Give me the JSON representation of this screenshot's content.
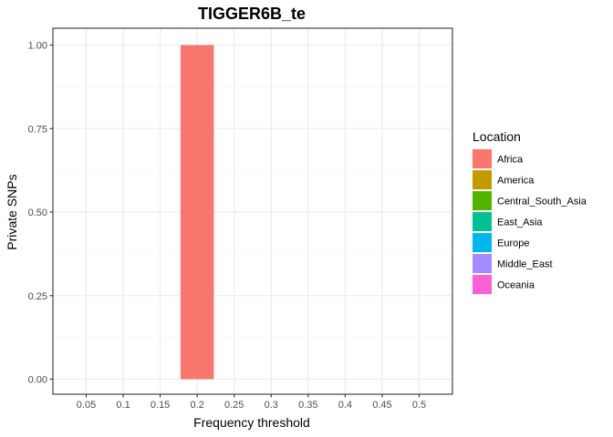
{
  "chart_data": {
    "type": "bar",
    "title": "TIGGER6B_te",
    "xlabel": "Frequency threshold",
    "ylabel": "Private SNPs",
    "categories": [
      "0.05",
      "0.1",
      "0.15",
      "0.2",
      "0.25",
      "0.3",
      "0.35",
      "0.4",
      "0.45",
      "0.5"
    ],
    "x_ticks": [
      "0.05",
      "0.1",
      "0.15",
      "0.2",
      "0.25",
      "0.3",
      "0.35",
      "0.4",
      "0.45",
      "0.5"
    ],
    "y_ticks": [
      "0.00",
      "0.25",
      "0.50",
      "0.75",
      "1.00"
    ],
    "ylim": [
      0,
      1
    ],
    "grid": true,
    "legend_position": "right",
    "legend_title": "Location",
    "series": [
      {
        "name": "Africa",
        "color": "#F8766D",
        "values": [
          0,
          0,
          0,
          1,
          0,
          0,
          0,
          0,
          0,
          0
        ]
      },
      {
        "name": "America",
        "color": "#C49A00",
        "values": [
          0,
          0,
          0,
          0,
          0,
          0,
          0,
          0,
          0,
          0
        ]
      },
      {
        "name": "Central_South_Asia",
        "color": "#53B400",
        "values": [
          0,
          0,
          0,
          0,
          0,
          0,
          0,
          0,
          0,
          0
        ]
      },
      {
        "name": "East_Asia",
        "color": "#00C094",
        "values": [
          0,
          0,
          0,
          0,
          0,
          0,
          0,
          0,
          0,
          0
        ]
      },
      {
        "name": "Europe",
        "color": "#00B6EB",
        "values": [
          0,
          0,
          0,
          0,
          0,
          0,
          0,
          0,
          0,
          0
        ]
      },
      {
        "name": "Middle_East",
        "color": "#A58AFF",
        "values": [
          0,
          0,
          0,
          0,
          0,
          0,
          0,
          0,
          0,
          0
        ]
      },
      {
        "name": "Oceania",
        "color": "#FB61D7",
        "values": [
          0,
          0,
          0,
          0,
          0,
          0,
          0,
          0,
          0,
          0
        ]
      }
    ]
  }
}
